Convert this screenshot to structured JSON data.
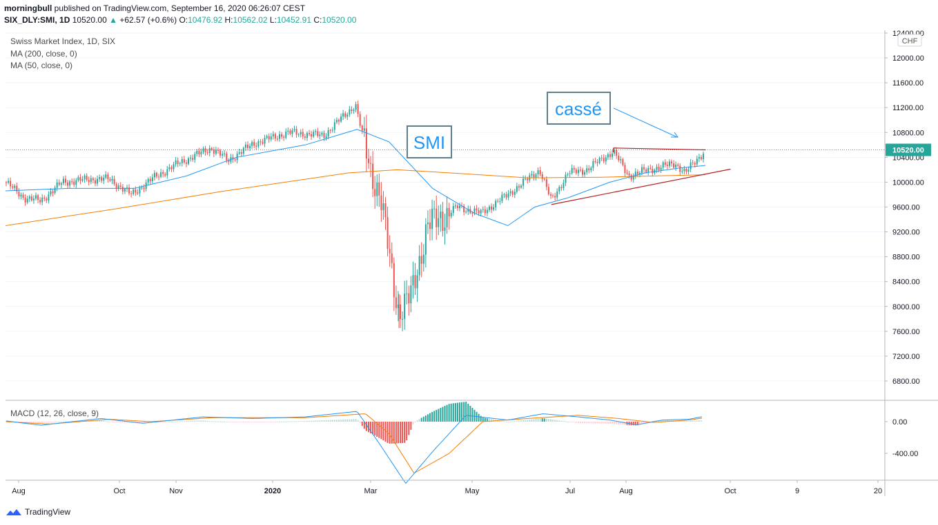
{
  "header": {
    "author": "morningbull",
    "published": "published on TradingView.com, September 16, 2020 06:26:07 CEST",
    "symbol": "SIX_DLY:SMI, 1D",
    "last": "10520.00",
    "change": "+62.57 (+0.6%)",
    "open_label": "O:",
    "open": "10476.92",
    "high_label": "H:",
    "high": "10562.02",
    "low_label": "L:",
    "low": "10452.91",
    "close_label": "C:",
    "close": "10520.00"
  },
  "legend": {
    "title": "Swiss Market Index, 1D, SIX",
    "ma200": "MA (200, close, 0)",
    "ma50": "MA (50, close, 0)",
    "macd": "MACD (12, 26, close, 9)"
  },
  "footer": {
    "brand": "TradingView"
  },
  "annotations": {
    "smi": "SMI",
    "casse": "cassé"
  },
  "colors": {
    "up": "#26a69a",
    "down": "#ef5350",
    "ma50": "#2196f3",
    "ma200": "#f57c00",
    "trend": "#b71c1c",
    "label_blue": "#2196f3",
    "price_tag": "#26a69a"
  },
  "chart_data": {
    "type": "candlestick",
    "currency": "CHF",
    "last_price_label": "10520.00",
    "price_axis": {
      "ticks": [
        "12400.00",
        "12000.00",
        "11600.00",
        "11200.00",
        "10800.00",
        "10400.00",
        "10000.00",
        "9600.00",
        "9200.00",
        "8800.00",
        "8400.00",
        "8000.00",
        "7600.00",
        "7200.00",
        "6800.00"
      ],
      "range": [
        6600,
        12400
      ]
    },
    "macd_axis": {
      "ticks": [
        "0.00",
        "-400.00"
      ]
    },
    "x_labels": [
      "Aug",
      "Oct",
      "Nov",
      "2020",
      "Mar",
      "May",
      "Jul",
      "Aug",
      "Oct",
      "9",
      "20"
    ],
    "price_path": [
      [
        "2019-07-25",
        10000
      ],
      [
        "2019-08-05",
        9750
      ],
      [
        "2019-08-15",
        9700
      ],
      [
        "2019-08-28",
        10000
      ],
      [
        "2019-09-15",
        10050
      ],
      [
        "2019-09-25",
        10050
      ],
      [
        "2019-10-08",
        9800
      ],
      [
        "2019-10-22",
        10080
      ],
      [
        "2019-11-05",
        10300
      ],
      [
        "2019-11-25",
        10550
      ],
      [
        "2019-12-05",
        10350
      ],
      [
        "2019-12-20",
        10620
      ],
      [
        "2020-01-10",
        10800
      ],
      [
        "2020-01-31",
        10750
      ],
      [
        "2020-02-19",
        11250
      ],
      [
        "2020-02-28",
        10200
      ],
      [
        "2020-03-05",
        9750
      ],
      [
        "2020-03-12",
        8500
      ],
      [
        "2020-03-16",
        7900
      ],
      [
        "2020-03-23",
        8150
      ],
      [
        "2020-04-02",
        9300
      ],
      [
        "2020-04-20",
        9600
      ],
      [
        "2020-05-04",
        9500
      ],
      [
        "2020-05-20",
        9800
      ],
      [
        "2020-06-08",
        10200
      ],
      [
        "2020-06-15",
        9700
      ],
      [
        "2020-06-25",
        10150
      ],
      [
        "2020-07-06",
        10200
      ],
      [
        "2020-07-22",
        10500
      ],
      [
        "2020-07-31",
        10100
      ],
      [
        "2020-08-12",
        10200
      ],
      [
        "2020-08-28",
        10300
      ],
      [
        "2020-09-03",
        10150
      ],
      [
        "2020-09-15",
        10520
      ]
    ],
    "ma200_path": [
      [
        "2019-07-25",
        9300
      ],
      [
        "2019-10-01",
        9580
      ],
      [
        "2019-12-01",
        9850
      ],
      [
        "2020-02-15",
        10150
      ],
      [
        "2020-03-15",
        10200
      ],
      [
        "2020-04-15",
        10150
      ],
      [
        "2020-06-01",
        10070
      ],
      [
        "2020-07-15",
        10080
      ],
      [
        "2020-09-15",
        10120
      ]
    ],
    "ma50_path": [
      [
        "2019-07-25",
        9860
      ],
      [
        "2019-09-01",
        9900
      ],
      [
        "2019-10-10",
        9900
      ],
      [
        "2019-11-10",
        10100
      ],
      [
        "2019-12-10",
        10400
      ],
      [
        "2020-01-20",
        10600
      ],
      [
        "2020-02-20",
        10850
      ],
      [
        "2020-03-10",
        10650
      ],
      [
        "2020-04-05",
        9900
      ],
      [
        "2020-04-30",
        9500
      ],
      [
        "2020-05-20",
        9300
      ],
      [
        "2020-06-05",
        9600
      ],
      [
        "2020-06-25",
        9750
      ],
      [
        "2020-07-20",
        10000
      ],
      [
        "2020-08-10",
        10150
      ],
      [
        "2020-08-31",
        10230
      ],
      [
        "2020-09-15",
        10270
      ]
    ],
    "trendlines": [
      {
        "from": [
          "2020-06-15",
          9640
        ],
        "to": [
          "2020-09-30",
          10210
        ]
      },
      {
        "from": [
          "2020-07-22",
          10550
        ],
        "to": [
          "2020-09-15",
          10520
        ]
      }
    ],
    "macd_path": [
      [
        "2019-07-25",
        10
      ],
      [
        "2019-08-15",
        -45
      ],
      [
        "2019-09-20",
        40
      ],
      [
        "2019-10-15",
        -20
      ],
      [
        "2019-11-20",
        60
      ],
      [
        "2019-12-20",
        40
      ],
      [
        "2020-01-20",
        60
      ],
      [
        "2020-02-20",
        130
      ],
      [
        "2020-03-05",
        -300
      ],
      [
        "2020-03-20",
        -780
      ],
      [
        "2020-04-05",
        -380
      ],
      [
        "2020-04-25",
        80
      ],
      [
        "2020-05-20",
        20
      ],
      [
        "2020-06-10",
        100
      ],
      [
        "2020-07-01",
        60
      ],
      [
        "2020-07-20",
        20
      ],
      [
        "2020-08-05",
        -40
      ],
      [
        "2020-08-20",
        20
      ],
      [
        "2020-09-05",
        30
      ],
      [
        "2020-09-15",
        70
      ]
    ],
    "signal_path": [
      [
        "2019-07-25",
        0
      ],
      [
        "2019-08-20",
        -30
      ],
      [
        "2019-09-25",
        30
      ],
      [
        "2019-10-20",
        0
      ],
      [
        "2019-11-25",
        50
      ],
      [
        "2020-01-20",
        50
      ],
      [
        "2020-02-25",
        100
      ],
      [
        "2020-03-10",
        -150
      ],
      [
        "2020-03-25",
        -650
      ],
      [
        "2020-04-15",
        -400
      ],
      [
        "2020-05-05",
        0
      ],
      [
        "2020-06-01",
        40
      ],
      [
        "2020-07-01",
        80
      ],
      [
        "2020-07-25",
        40
      ],
      [
        "2020-08-15",
        -10
      ],
      [
        "2020-09-05",
        20
      ],
      [
        "2020-09-15",
        50
      ]
    ]
  }
}
